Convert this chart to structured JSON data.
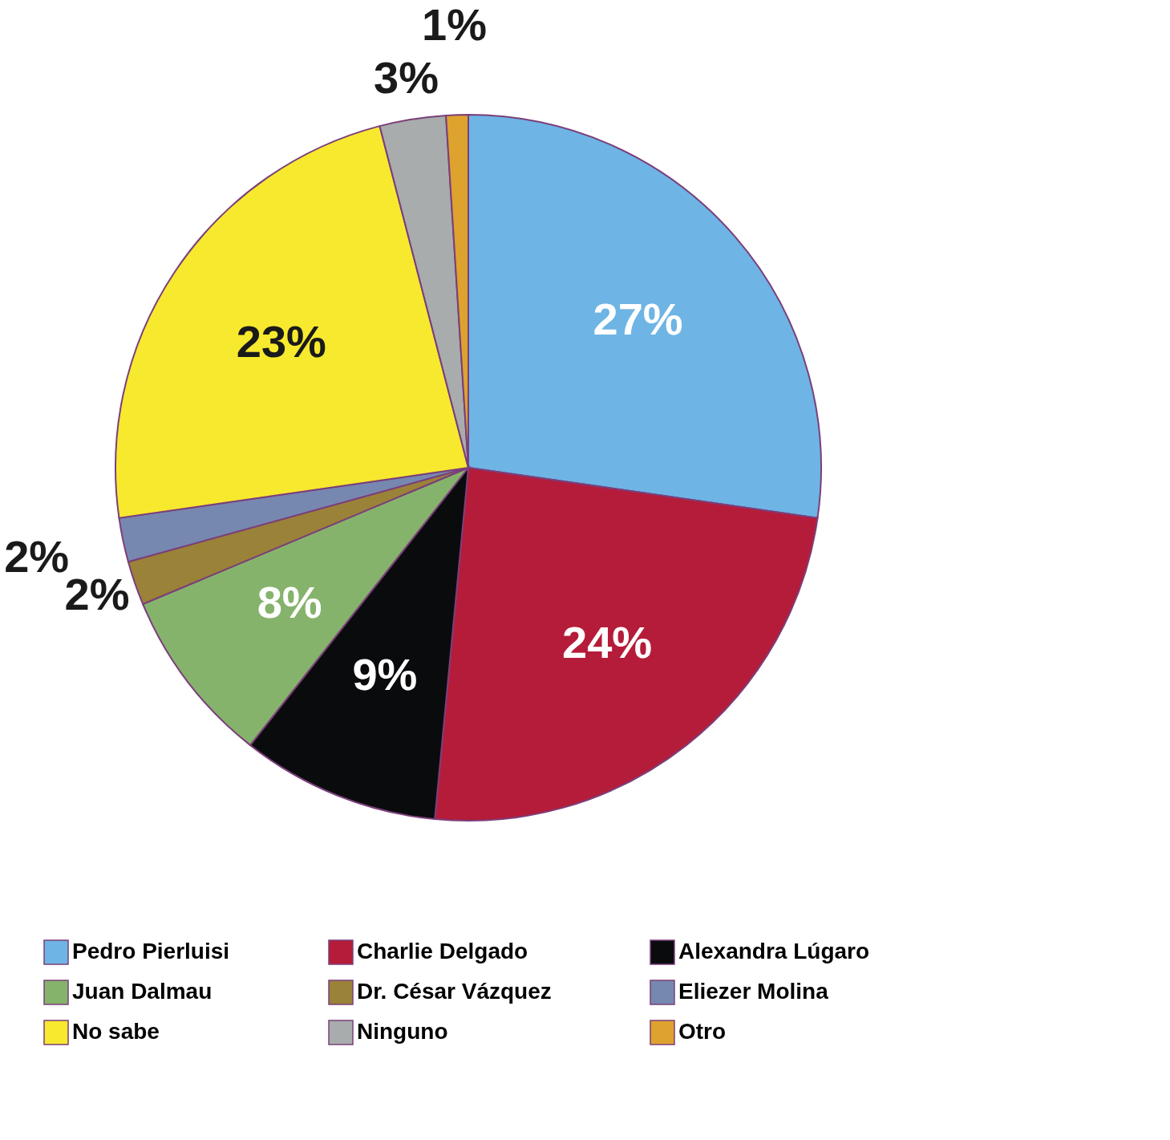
{
  "chart_data": {
    "type": "pie",
    "categories": [
      "Pedro Pierluisi",
      "Charlie Delgado",
      "Alexandra Lúgaro",
      "Juan Dalmau",
      "Dr. César Vázquez",
      "Eliezer Molina",
      "No sabe",
      "Ninguno",
      "Otro"
    ],
    "values": [
      27,
      24,
      9,
      8,
      2,
      2,
      23,
      3,
      1
    ],
    "colors": [
      "#6eb4e4",
      "#b51c3a",
      "#0a0b0d",
      "#86b36c",
      "#9a8238",
      "#7788b0",
      "#f7e92e",
      "#a8acac",
      "#dea22e"
    ],
    "value_labels": [
      "27%",
      "24%",
      "9%",
      "8%",
      "2%",
      "2%",
      "23%",
      "3%",
      "1%"
    ],
    "legend": "bottom"
  }
}
